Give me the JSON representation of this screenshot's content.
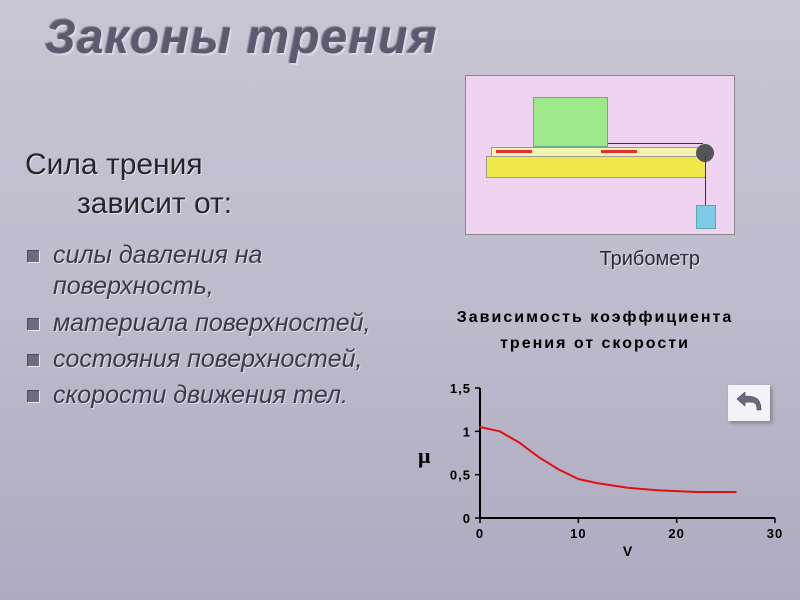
{
  "title": "Законы трения",
  "subtitle_line1": "Сила трения",
  "subtitle_line2": "зависит от:",
  "bullets": [
    "силы давления на поверхность,",
    "материала поверхностей,",
    "состояния поверхностей,",
    "скорости движения тел."
  ],
  "tribometer_caption": "Трибометр",
  "chart": {
    "type": "line",
    "title_line1": "Зависимость коэффициента",
    "title_line2": "трения от скорости",
    "x_label": "V",
    "y_label": "μ",
    "xlim": [
      0,
      30
    ],
    "ylim": [
      0,
      1.5
    ],
    "x_ticks": [
      0,
      10,
      20,
      30
    ],
    "y_ticks": [
      0,
      0.5,
      1,
      1.5
    ],
    "y_tick_labels": [
      "0",
      "0,5",
      "1",
      "1,5"
    ],
    "x_tick_labels": [
      "0",
      "10",
      "20",
      "30"
    ],
    "series": {
      "x": [
        0,
        2,
        4,
        6,
        8,
        10,
        12,
        15,
        18,
        22,
        26
      ],
      "y": [
        1.05,
        1.0,
        0.87,
        0.7,
        0.56,
        0.45,
        0.4,
        0.35,
        0.32,
        0.3,
        0.3
      ]
    },
    "line_color": "#e01010",
    "line_width": 2,
    "axis_color": "#000000",
    "axis_width": 2,
    "tick_length": 5,
    "tick_fontsize": 13,
    "tick_fontweight": "bold",
    "title_fontsize": 16,
    "label_fontsize": 14,
    "background": "transparent"
  },
  "colors": {
    "bg_top": "#c8c6d4",
    "bg_bottom": "#aeabc0",
    "title_color": "#5d5a70",
    "text_color": "#3b3848",
    "tribo_bg": "#efd3f0",
    "tribo_block": "#9de889",
    "tribo_base": "#f0e84a",
    "tribo_weight": "#7ecbe6",
    "bullet_marker": "#6e6b80"
  }
}
